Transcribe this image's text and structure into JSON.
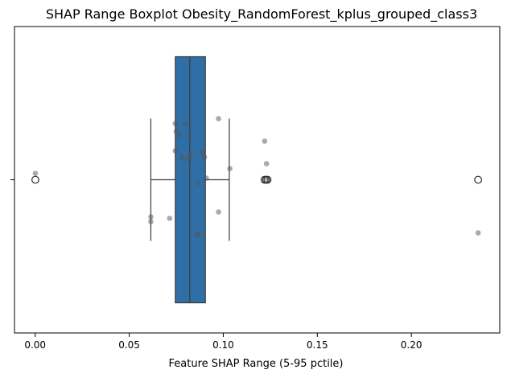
{
  "chart_data": {
    "type": "boxplot",
    "orientation": "horizontal",
    "title": "SHAP Range Boxplot Obesity_RandomForest_kplus_grouped_class3",
    "xlabel": "Feature SHAP Range (5-95 pctile)",
    "ylabel": "",
    "xlim": [
      -0.011,
      0.247
    ],
    "xticks": [
      0.0,
      0.05,
      0.1,
      0.15,
      0.2
    ],
    "xtick_labels": [
      "0.00",
      "0.05",
      "0.10",
      "0.15",
      "0.20"
    ],
    "yticks": [
      ""
    ],
    "grid": false,
    "box": {
      "whisker_low": 0.0615,
      "q1": 0.0745,
      "median": 0.0822,
      "q3": 0.0905,
      "whisker_high": 0.1032,
      "outliers": [
        0.0001,
        0.122,
        0.1228,
        0.1235,
        0.2355
      ],
      "color": "#2f6fa6"
    },
    "points": {
      "color": "#555555",
      "values": [
        {
          "x": 0.0001,
          "y": 0.04
        },
        {
          "x": 0.0615,
          "y": -0.23
        },
        {
          "x": 0.0615,
          "y": -0.26
        },
        {
          "x": 0.0715,
          "y": -0.24
        },
        {
          "x": 0.0745,
          "y": 0.35
        },
        {
          "x": 0.075,
          "y": 0.3
        },
        {
          "x": 0.0745,
          "y": 0.18
        },
        {
          "x": 0.0765,
          "y": 0.28
        },
        {
          "x": 0.078,
          "y": 0.14
        },
        {
          "x": 0.08,
          "y": 0.35
        },
        {
          "x": 0.081,
          "y": 0.13
        },
        {
          "x": 0.082,
          "y": 0.27
        },
        {
          "x": 0.0825,
          "y": 0.15
        },
        {
          "x": 0.086,
          "y": -0.34
        },
        {
          "x": 0.087,
          "y": -0.34
        },
        {
          "x": 0.0865,
          "y": -0.02
        },
        {
          "x": 0.089,
          "y": 0.17
        },
        {
          "x": 0.09,
          "y": 0.14
        },
        {
          "x": 0.091,
          "y": 0.01
        },
        {
          "x": 0.0975,
          "y": 0.38
        },
        {
          "x": 0.0975,
          "y": -0.2
        },
        {
          "x": 0.1035,
          "y": 0.07
        },
        {
          "x": 0.122,
          "y": 0.24
        },
        {
          "x": 0.123,
          "y": 0.1
        },
        {
          "x": 0.1235,
          "y": 0.0
        },
        {
          "x": 0.2355,
          "y": -0.33
        }
      ]
    }
  }
}
